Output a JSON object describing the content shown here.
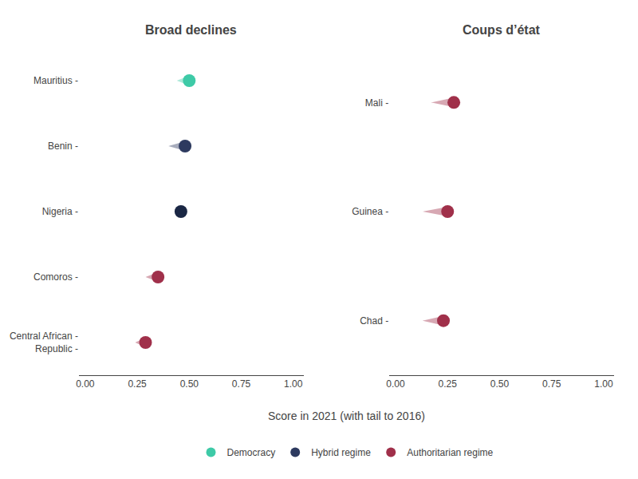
{
  "chart_data": [
    {
      "type": "dumbbell",
      "title": "Broad declines",
      "xlabel": "Score in 2021 (with tail to 2016)",
      "categories": [
        "Mauritius -",
        "Benin -",
        "Nigeria -",
        "Comoros -",
        "Central African -\nRepublic -"
      ],
      "series": [
        {
          "name": "Democracy",
          "color": "#3ecaa7",
          "values": [
            0.5,
            null,
            null,
            null,
            null
          ],
          "tail_values": [
            0.44,
            null,
            null,
            null,
            null
          ]
        },
        {
          "name": "Hybrid regime",
          "color": "#2d3a5f",
          "colors": [
            null,
            "#2d3a5f",
            "#1a2744",
            null,
            null
          ],
          "values": [
            null,
            0.48,
            0.46,
            null,
            null
          ],
          "tail_values": [
            null,
            0.4,
            0.43,
            null,
            null
          ]
        },
        {
          "name": "Authoritarian regime",
          "color": "#a0304a",
          "values": [
            null,
            null,
            null,
            0.35,
            0.29
          ],
          "tail_values": [
            null,
            null,
            null,
            0.29,
            0.24
          ]
        }
      ],
      "xlim": [
        -0.03,
        1.05
      ],
      "xticks": [
        {
          "value": 0.0,
          "label": "0.00"
        },
        {
          "value": 0.25,
          "label": "0.25"
        },
        {
          "value": 0.5,
          "label": "0.50"
        },
        {
          "value": 0.75,
          "label": "0.75"
        },
        {
          "value": 1.0,
          "label": "1.00"
        }
      ],
      "grid": false,
      "legend": "bottom"
    },
    {
      "type": "dumbbell",
      "title": "Coups d’état",
      "categories": [
        "Mali -",
        "Guinea -",
        "Chad -"
      ],
      "series": [
        {
          "name": "Authoritarian regime",
          "color": "#a0304a",
          "values": [
            0.28,
            0.25,
            0.23
          ],
          "tail_values": [
            0.17,
            0.13,
            0.13
          ]
        }
      ],
      "xlim": [
        -0.03,
        1.05
      ],
      "xticks": [
        {
          "value": 0.0,
          "label": "0.00"
        },
        {
          "value": 0.25,
          "label": "0.25"
        },
        {
          "value": 0.5,
          "label": "0.50"
        },
        {
          "value": 0.75,
          "label": "0.75"
        },
        {
          "value": 1.0,
          "label": "1.00"
        }
      ],
      "grid": false
    }
  ]
}
